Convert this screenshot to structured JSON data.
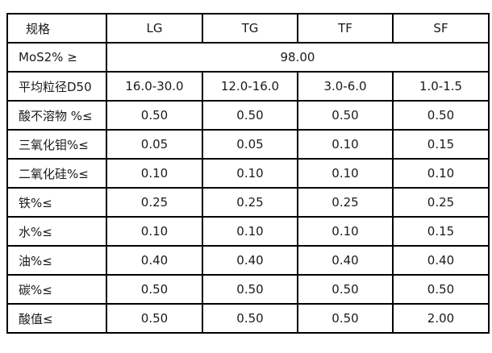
{
  "table": {
    "header": {
      "label": "规格",
      "grades": [
        "LG",
        "TG",
        "TF",
        "SF"
      ]
    },
    "mos2": {
      "label": "MoS2% ≥",
      "value": "98.00"
    },
    "rows": [
      {
        "label": "平均粒径D50",
        "values": [
          "16.0-30.0",
          "12.0-16.0",
          "3.0-6.0",
          "1.0-1.5"
        ]
      },
      {
        "label": "酸不溶物 %≤",
        "values": [
          "0.50",
          "0.50",
          "0.50",
          "0.50"
        ]
      },
      {
        "label": "三氧化钼%≤",
        "values": [
          "0.05",
          "0.05",
          "0.10",
          "0.15"
        ]
      },
      {
        "label": "二氧化硅%≤",
        "values": [
          "0.10",
          "0.10",
          "0.10",
          "0.10"
        ]
      },
      {
        "label": "铁%≤",
        "values": [
          "0.25",
          "0.25",
          "0.25",
          "0.25"
        ]
      },
      {
        "label": "水%≤",
        "values": [
          "0.10",
          "0.10",
          "0.10",
          "0.15"
        ]
      },
      {
        "label": "油%≤",
        "values": [
          "0.40",
          "0.40",
          "0.40",
          "0.40"
        ]
      },
      {
        "label": "碳%≤",
        "values": [
          "0.50",
          "0.50",
          "0.50",
          "0.50"
        ]
      },
      {
        "label": "酸值≤",
        "values": [
          "0.50",
          "0.50",
          "0.50",
          "2.00"
        ]
      }
    ]
  }
}
